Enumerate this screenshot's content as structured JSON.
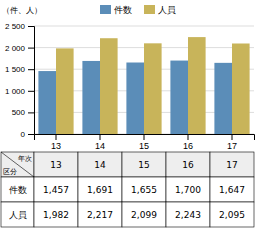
{
  "chart_data": {
    "type": "bar",
    "categories": [
      "13",
      "14",
      "15",
      "16",
      "17"
    ],
    "series": [
      {
        "name": "件数",
        "color": "#5b8db8",
        "values": [
          1457,
          1691,
          1655,
          1700,
          1647
        ],
        "value_labels": [
          "1,457",
          "1,691",
          "1,655",
          "1,700",
          "1,647"
        ]
      },
      {
        "name": "人員",
        "color": "#c8b45a",
        "values": [
          1982,
          2217,
          2099,
          2243,
          2095
        ],
        "value_labels": [
          "1,982",
          "2,217",
          "2,099",
          "2,243",
          "2,095"
        ]
      }
    ],
    "ylabel": "（件、人）",
    "ylim": [
      0,
      2500
    ],
    "yticks": [
      0,
      500,
      {
        "value": 1000,
        "label": "1 000"
      },
      {
        "value": 1500,
        "label": "1 500"
      },
      {
        "value": 2000,
        "label": "2 000"
      },
      {
        "value": 2500,
        "label": "2 500"
      }
    ],
    "grid": true,
    "legend": "top",
    "table": {
      "corner_top": "年次",
      "corner_bottom": "区分"
    }
  }
}
